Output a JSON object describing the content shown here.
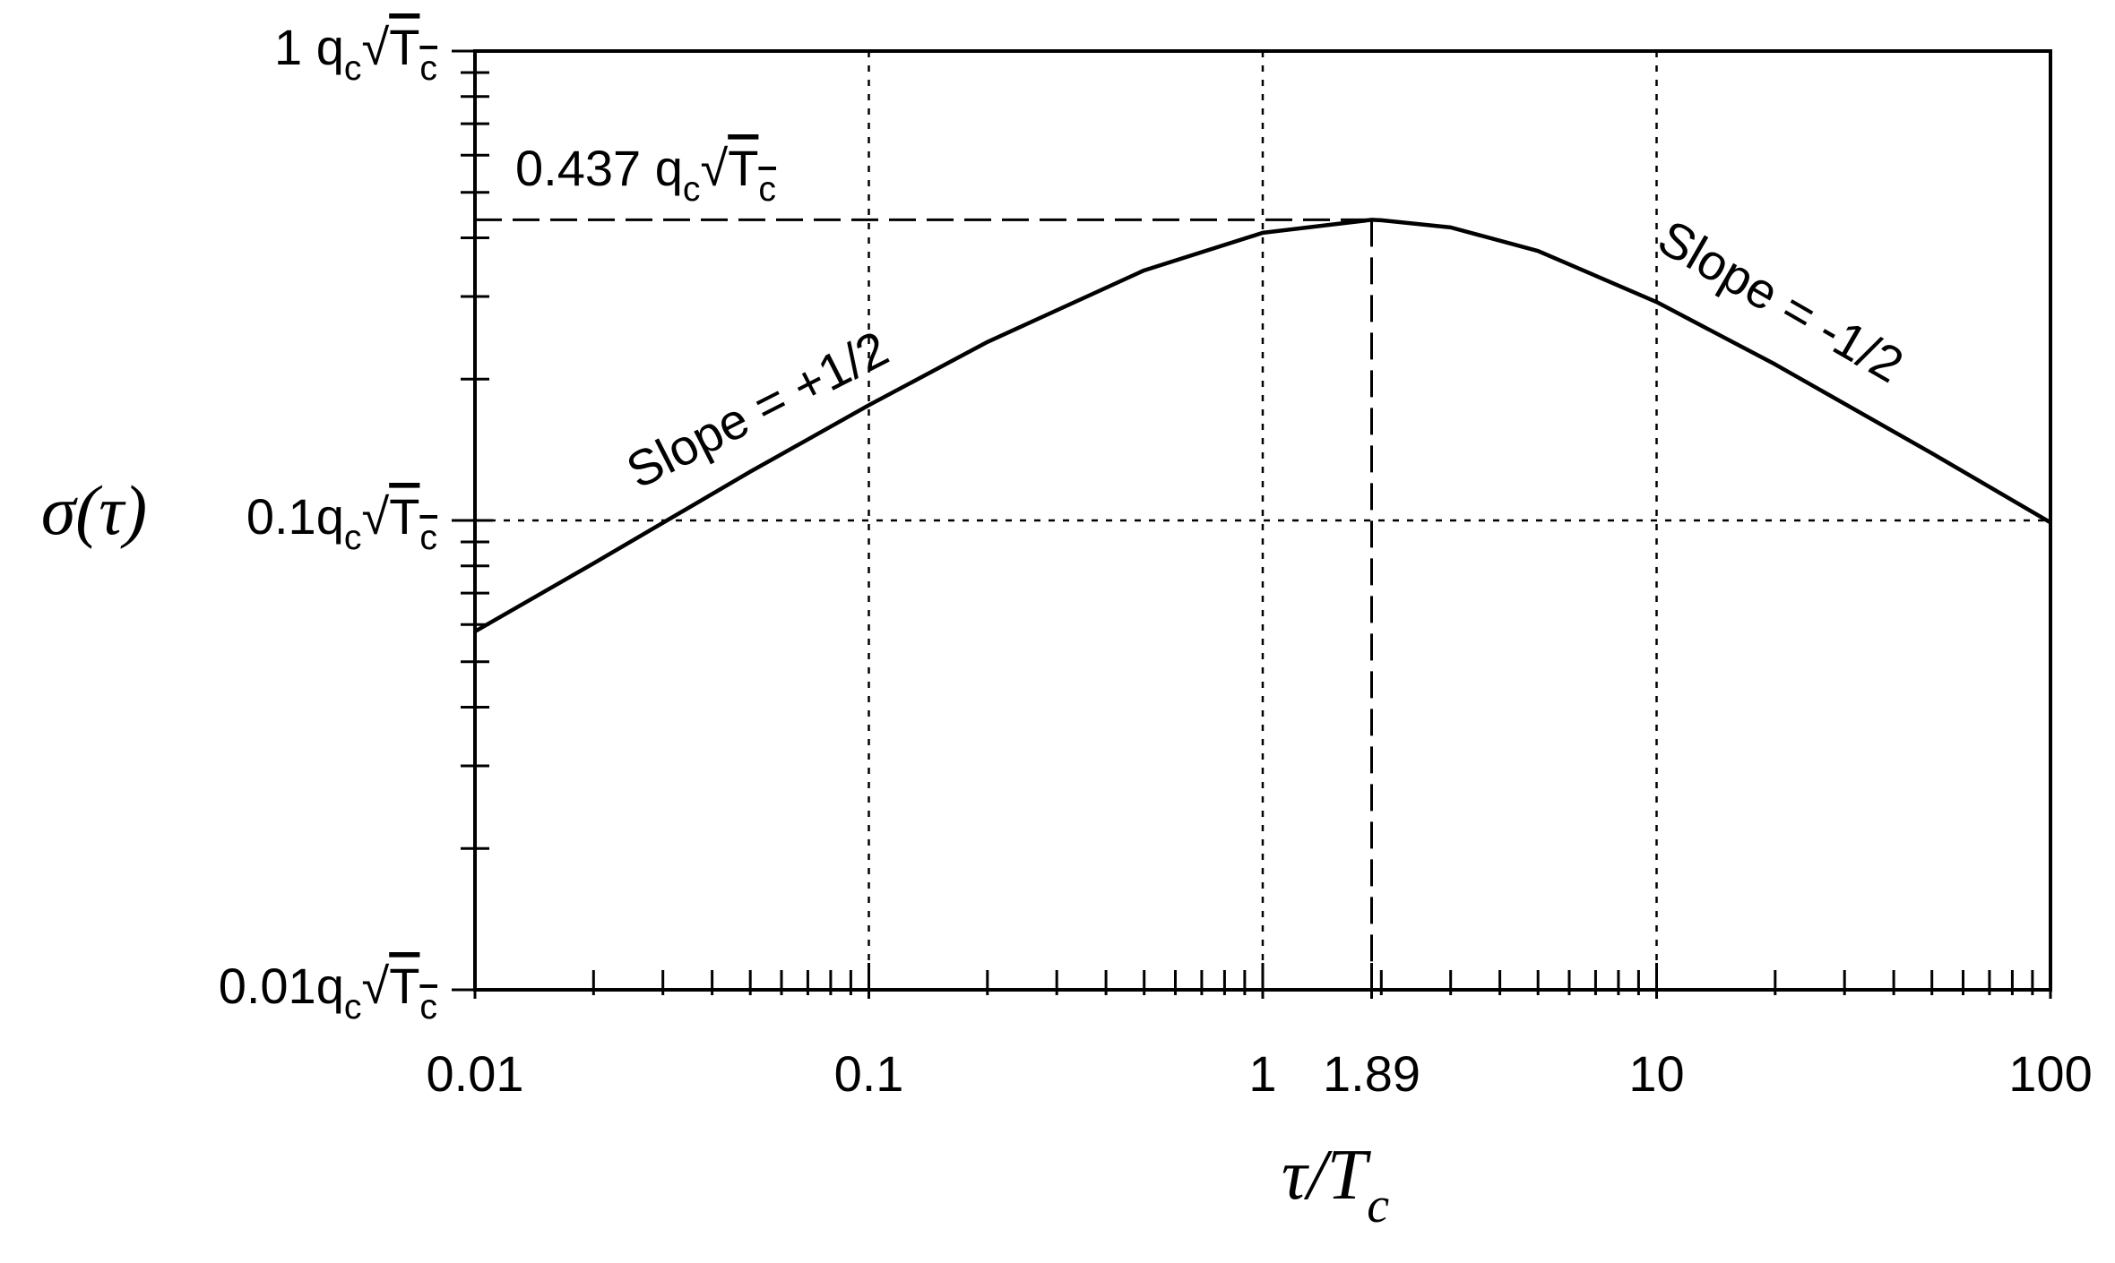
{
  "chart_data": {
    "type": "line",
    "x_label": "τ/Tc",
    "y_label": "σ(τ)",
    "x": [
      0.01,
      0.02,
      0.05,
      0.1,
      0.2,
      0.5,
      1,
      1.89,
      2,
      3,
      5,
      10,
      20,
      50,
      100
    ],
    "values": [
      0.058,
      0.081,
      0.127,
      0.176,
      0.24,
      0.341,
      0.41,
      0.437,
      0.436,
      0.421,
      0.375,
      0.292,
      0.215,
      0.139,
      0.099
    ],
    "color": "#000000",
    "log_x": true,
    "log_y": true,
    "xlim": [
      0.01,
      100
    ],
    "ylim": [
      0.01,
      1
    ],
    "xticks": [
      0.01,
      0.1,
      1,
      1.89,
      10,
      100
    ],
    "yticks": [
      {
        "value": 0.01,
        "label": "0.01qc√Tc"
      },
      {
        "value": 0.1,
        "label": "0.1qc√Tc"
      },
      {
        "value": 1,
        "label": "1 qc√Tc"
      }
    ],
    "xminorticks": [
      0.02,
      0.03,
      0.04,
      0.05,
      0.06,
      0.07,
      0.08,
      0.09,
      0.2,
      0.3,
      0.4,
      0.5,
      0.6,
      0.7,
      0.8,
      0.9,
      2,
      3,
      4,
      5,
      6,
      7,
      8,
      9,
      20,
      30,
      40,
      50,
      60,
      70,
      80,
      90
    ],
    "yminorticks": [
      0.02,
      0.03,
      0.04,
      0.05,
      0.06,
      0.07,
      0.08,
      0.09,
      0.2,
      0.3,
      0.4,
      0.5,
      0.6,
      0.7,
      0.8,
      0.9
    ],
    "grid": true,
    "reference": {
      "x": 1.89,
      "y": 0.437,
      "label": "0.437 qc√Tc"
    },
    "annotations": [
      {
        "text": "Slope = +1/2"
      },
      {
        "text": "Slope = -1/2"
      }
    ]
  }
}
